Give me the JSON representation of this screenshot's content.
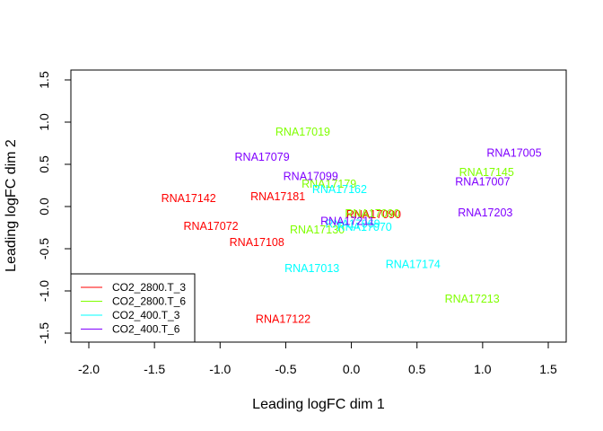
{
  "chart_data": {
    "type": "scatter",
    "title": "",
    "xlabel": "Leading logFC dim 1",
    "ylabel": "Leading logFC dim 2",
    "xlim": [
      -2.0,
      1.5
    ],
    "ylim": [
      -1.5,
      1.5
    ],
    "x_ticks": [
      "-2.0",
      "-1.5",
      "-1.0",
      "-0.5",
      "0.0",
      "0.5",
      "1.0",
      "1.5"
    ],
    "y_ticks": [
      "-1.5",
      "-1.0",
      "-0.5",
      "0.0",
      "0.5",
      "1.0",
      "1.5"
    ],
    "legend_position": "bottom-left",
    "series": [
      {
        "name": "CO2_2800.T_3",
        "color": "#ff0000",
        "points": [
          {
            "label": "RNA17142",
            "x": -1.24,
            "y": 0.1
          },
          {
            "label": "RNA17181",
            "x": -0.56,
            "y": 0.12
          },
          {
            "label": "RNA17072",
            "x": -1.07,
            "y": -0.23
          },
          {
            "label": "RNA17108",
            "x": -0.72,
            "y": -0.42
          },
          {
            "label": "RNA17122",
            "x": -0.52,
            "y": -1.33
          },
          {
            "label": "RNA17090",
            "x": 0.17,
            "y": -0.09
          }
        ]
      },
      {
        "name": "CO2_2800.T_6",
        "color": "#80ff00",
        "points": [
          {
            "label": "RNA17019",
            "x": -0.37,
            "y": 0.89
          },
          {
            "label": "RNA17179",
            "x": -0.17,
            "y": 0.27
          },
          {
            "label": "RNA17130",
            "x": -0.26,
            "y": -0.27
          },
          {
            "label": "RNA17145",
            "x": 1.03,
            "y": 0.41
          },
          {
            "label": "RNA17213",
            "x": 0.92,
            "y": -1.09
          },
          {
            "label": "RNA17090",
            "x": 0.16,
            "y": -0.08
          }
        ]
      },
      {
        "name": "CO2_400.T_3",
        "color": "#00ffff",
        "points": [
          {
            "label": "RNA17162",
            "x": -0.09,
            "y": 0.21
          },
          {
            "label": "RNA17069",
            "x": 0.01,
            "y": -0.2
          },
          {
            "label": "RNA17070",
            "x": 0.1,
            "y": -0.24
          },
          {
            "label": "RNA17013",
            "x": -0.3,
            "y": -0.73
          },
          {
            "label": "RNA17174",
            "x": 0.47,
            "y": -0.68
          }
        ]
      },
      {
        "name": "CO2_400.T_6",
        "color": "#8000ff",
        "points": [
          {
            "label": "RNA17079",
            "x": -0.68,
            "y": 0.59
          },
          {
            "label": "RNA17099",
            "x": -0.31,
            "y": 0.36
          },
          {
            "label": "RNA17005",
            "x": 1.24,
            "y": 0.64
          },
          {
            "label": "RNA17007",
            "x": 1.0,
            "y": 0.3
          },
          {
            "label": "RNA17211",
            "x": -0.03,
            "y": -0.17
          },
          {
            "label": "RNA17203",
            "x": 1.02,
            "y": -0.07
          }
        ]
      }
    ]
  }
}
